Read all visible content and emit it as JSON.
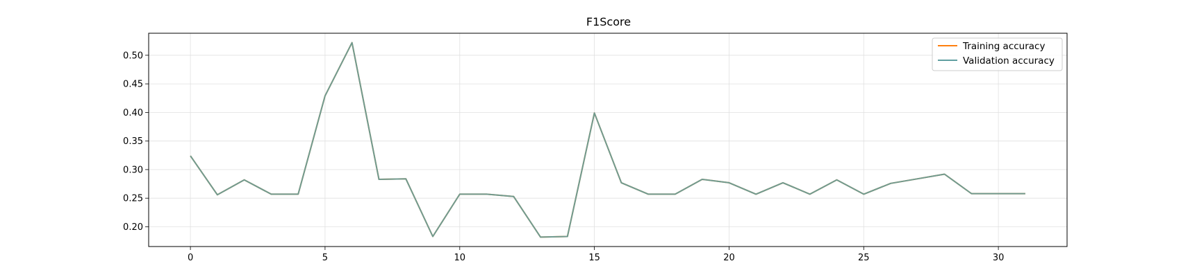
{
  "chart_data": {
    "type": "line",
    "title": "F1Score",
    "xlabel": "",
    "ylabel": "",
    "xlim": [
      -1.55,
      32.55
    ],
    "ylim": [
      0.1655,
      0.5385
    ],
    "xticks": [
      0,
      5,
      10,
      15,
      20,
      25,
      30
    ],
    "yticks": [
      0.2,
      0.25,
      0.3,
      0.35,
      0.4,
      0.45,
      0.5
    ],
    "ytick_labels": [
      "0.20",
      "0.25",
      "0.30",
      "0.35",
      "0.40",
      "0.45",
      "0.50"
    ],
    "grid": true,
    "legend_position": "upper right",
    "x": [
      0,
      1,
      2,
      3,
      4,
      5,
      6,
      7,
      8,
      9,
      10,
      11,
      12,
      13,
      14,
      15,
      16,
      17,
      18,
      19,
      20,
      21,
      22,
      23,
      24,
      25,
      26,
      27,
      28,
      29,
      30,
      31
    ],
    "series": [
      {
        "name": "Training accuracy",
        "color": "#ff7f0e",
        "values": [
          0.324,
          0.256,
          0.282,
          0.257,
          0.257,
          0.429,
          0.522,
          0.283,
          0.284,
          0.183,
          0.257,
          0.257,
          0.253,
          0.182,
          0.183,
          0.399,
          0.277,
          0.257,
          0.257,
          0.283,
          0.277,
          0.257,
          0.277,
          0.257,
          0.282,
          0.257,
          0.276,
          0.284,
          0.292,
          0.258,
          0.258,
          0.258
        ]
      },
      {
        "name": "Validation accuracy",
        "color": "#5f9ea0",
        "values": [
          0.324,
          0.256,
          0.282,
          0.257,
          0.257,
          0.429,
          0.522,
          0.283,
          0.284,
          0.183,
          0.257,
          0.257,
          0.253,
          0.182,
          0.183,
          0.399,
          0.277,
          0.257,
          0.257,
          0.283,
          0.277,
          0.257,
          0.277,
          0.257,
          0.282,
          0.257,
          0.276,
          0.284,
          0.292,
          0.258,
          0.258,
          0.258
        ]
      }
    ]
  }
}
